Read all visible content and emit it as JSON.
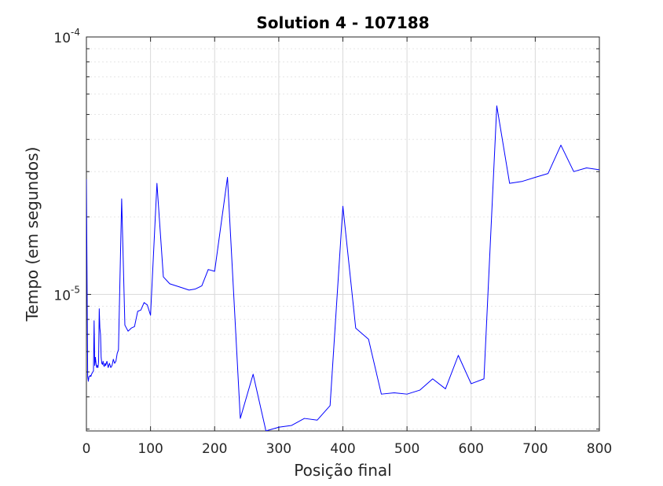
{
  "chart_data": {
    "type": "line",
    "title": "Solution 4 - 107188",
    "xlabel": "Posição final",
    "ylabel": "Tempo (em segundos)",
    "xlim": [
      0,
      800
    ],
    "ylim": [
      2.95e-06,
      0.0001
    ],
    "yscale": "log",
    "grid": true,
    "minor_grid": true,
    "x_ticks": [
      0,
      100,
      200,
      300,
      400,
      500,
      600,
      700,
      800
    ],
    "x_tick_labels": [
      "0",
      "100",
      "200",
      "300",
      "400",
      "500",
      "600",
      "700",
      "800"
    ],
    "y_ticks": [
      1e-05,
      0.0001
    ],
    "y_tick_labels": [
      {
        "base": "10",
        "exp": "-5"
      },
      {
        "base": "10",
        "exp": "-4"
      }
    ],
    "series": [
      {
        "color": "#0000ff",
        "x": [
          0,
          2,
          3,
          4,
          5,
          6,
          7,
          8,
          9,
          10,
          11,
          12,
          13,
          14,
          15,
          16,
          17,
          18,
          19,
          20,
          21,
          22,
          23,
          24,
          25,
          26,
          27,
          28,
          29,
          30,
          32,
          34,
          36,
          38,
          40,
          42,
          44,
          46,
          48,
          50,
          55,
          60,
          65,
          70,
          75,
          80,
          85,
          90,
          95,
          100,
          110,
          120,
          130,
          140,
          150,
          160,
          170,
          180,
          190,
          200,
          220,
          240,
          260,
          280,
          300,
          320,
          340,
          360,
          380,
          400,
          420,
          440,
          460,
          480,
          500,
          520,
          540,
          560,
          580,
          600,
          620,
          640,
          660,
          680,
          700,
          720,
          740,
          760,
          780,
          800
        ],
        "values": [
          2.8e-05,
          4.8e-06,
          4.6e-06,
          4.8e-06,
          4.8e-06,
          4.85e-06,
          4.8e-06,
          4.9e-06,
          4.95e-06,
          5e-06,
          5.05e-06,
          7.9e-06,
          5.3e-06,
          5.7e-06,
          5.4e-06,
          5.2e-06,
          5.3e-06,
          5.2e-06,
          5.5e-06,
          8.8e-06,
          7.4e-06,
          7e-06,
          5.7e-06,
          5.4e-06,
          5.35e-06,
          5.5e-06,
          5.3e-06,
          5.25e-06,
          5.4e-06,
          5.3e-06,
          5.5e-06,
          5.2e-06,
          5.4e-06,
          5.2e-06,
          5.3e-06,
          5.6e-06,
          5.4e-06,
          5.5e-06,
          5.9e-06,
          6.1e-06,
          2.35e-05,
          7.6e-06,
          7.2e-06,
          7.4e-06,
          7.5e-06,
          8.6e-06,
          8.7e-06,
          9.3e-06,
          9.1e-06,
          8.3e-06,
          2.7e-05,
          1.17e-05,
          1.1e-05,
          1.08e-05,
          1.06e-05,
          1.04e-05,
          1.05e-05,
          1.08e-05,
          1.25e-05,
          1.23e-05,
          2.85e-05,
          3.3e-06,
          4.9e-06,
          2.95e-06,
          3.05e-06,
          3.1e-06,
          3.3e-06,
          3.25e-06,
          3.7e-06,
          2.2e-05,
          7.4e-06,
          6.7e-06,
          4.1e-06,
          4.15e-06,
          4.1e-06,
          4.25e-06,
          4.7e-06,
          4.3e-06,
          5.8e-06,
          4.5e-06,
          4.7e-06,
          5.4e-05,
          2.7e-05,
          2.75e-05,
          2.85e-05,
          2.95e-05,
          3.8e-05,
          3e-05,
          3.1e-05,
          3.05e-05
        ]
      }
    ]
  }
}
